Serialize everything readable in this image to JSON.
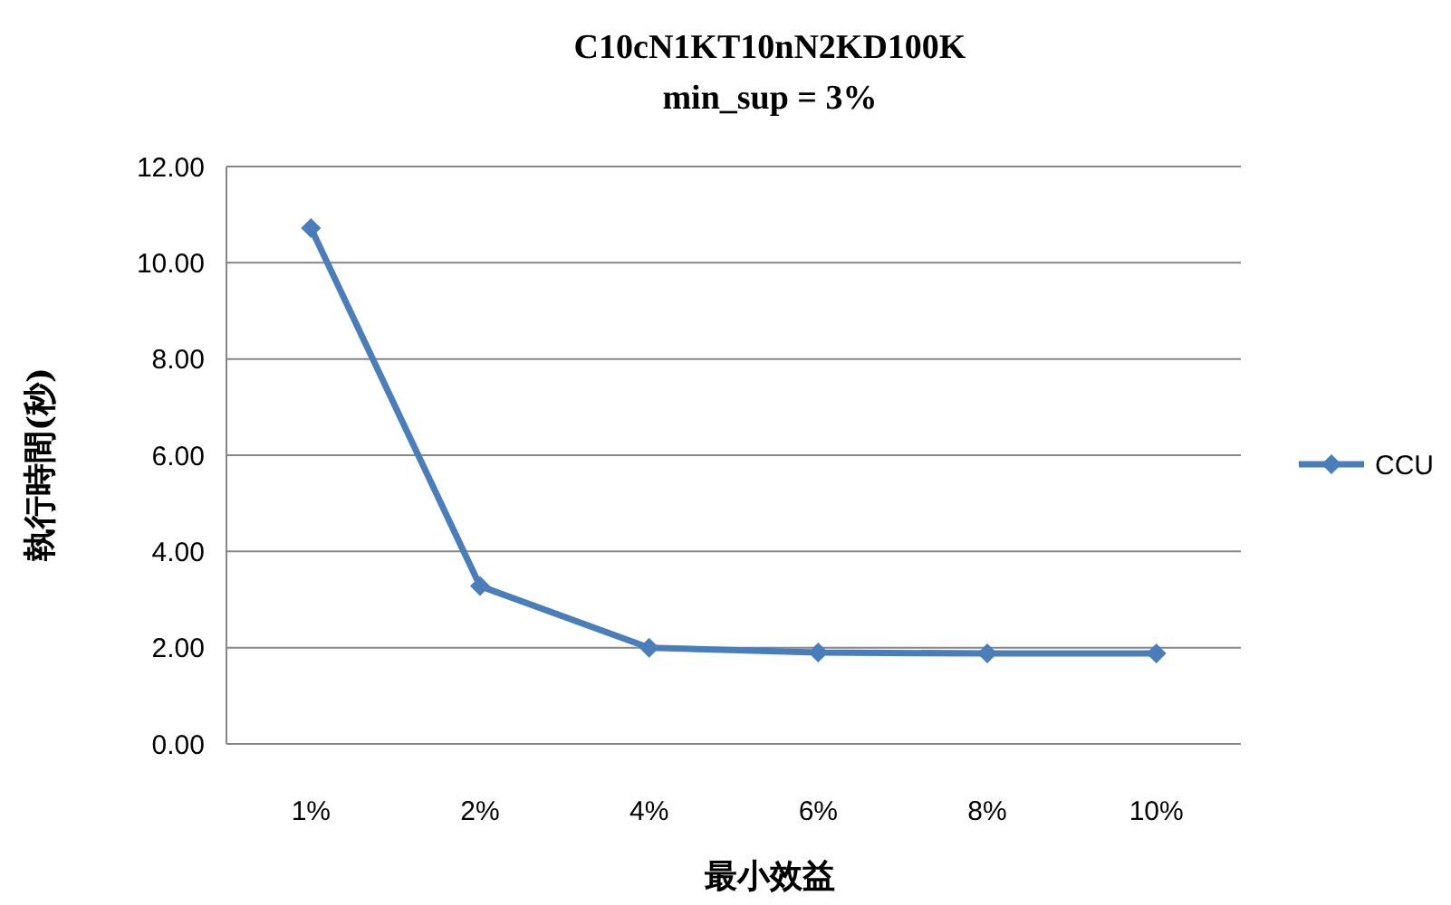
{
  "chart_data": {
    "type": "line",
    "title": "C10cN1KT10nN2KD100K",
    "subtitle": "min_sup = 3%",
    "xlabel": "最小效益",
    "ylabel": "執行時間(秒)",
    "categories": [
      "1%",
      "2%",
      "4%",
      "6%",
      "8%",
      "10%"
    ],
    "series": [
      {
        "name": "CCU",
        "color": "#4a7ebb",
        "values": [
          10.72,
          3.28,
          2.0,
          1.9,
          1.88,
          1.88
        ]
      }
    ],
    "ylim": [
      0,
      12
    ],
    "yticks": [
      {
        "value": 0,
        "label": "0.00"
      },
      {
        "value": 2,
        "label": "2.00"
      },
      {
        "value": 4,
        "label": "4.00"
      },
      {
        "value": 6,
        "label": "6.00"
      },
      {
        "value": 8,
        "label": "8.00"
      },
      {
        "value": 10,
        "label": "10.00"
      },
      {
        "value": 12,
        "label": "12.00"
      }
    ],
    "grid": "y",
    "legend": "right",
    "marker": "diamond",
    "line_style": "solid"
  }
}
